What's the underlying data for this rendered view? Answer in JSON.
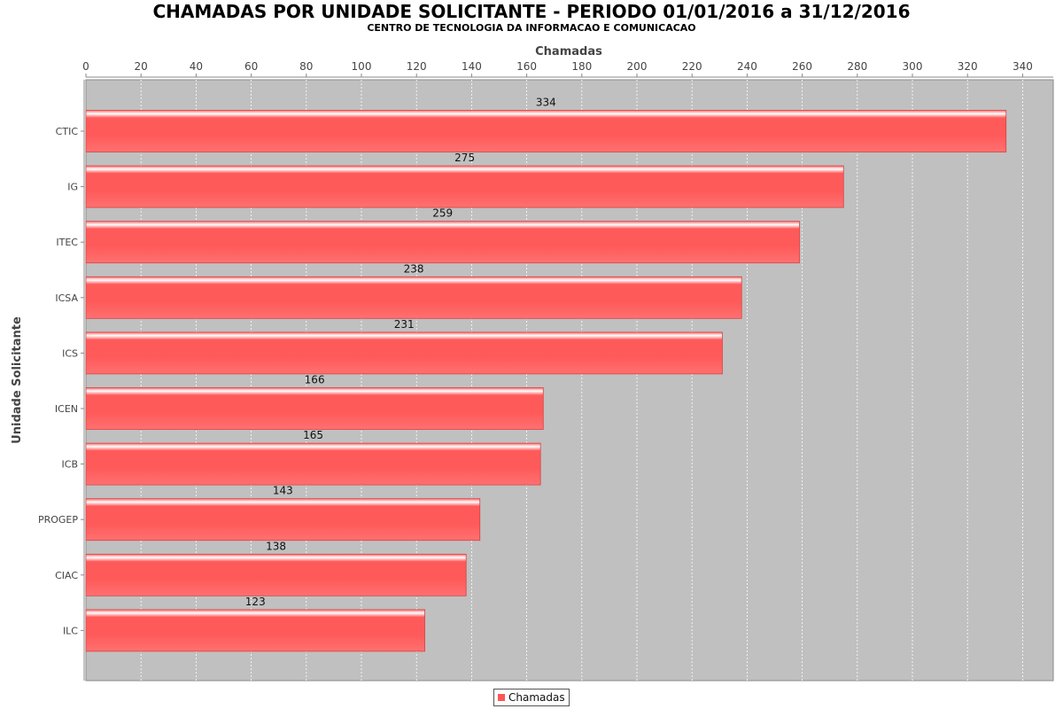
{
  "chart_data": {
    "type": "bar",
    "orientation": "horizontal",
    "title": "CHAMADAS POR UNIDADE SOLICITANTE - PERIODO 01/01/2016 a 31/12/2016",
    "subtitle": "CENTRO DE TECNOLOGIA DA INFORMACAO E COMUNICACAO",
    "xlabel": "Chamadas",
    "ylabel": "Unidade Solicitante",
    "xlim": [
      0,
      350
    ],
    "x_ticks": [
      0,
      20,
      40,
      60,
      80,
      100,
      120,
      140,
      160,
      180,
      200,
      220,
      240,
      260,
      280,
      300,
      320,
      340
    ],
    "x_axis_position": "top",
    "grid": true,
    "legend_position": "bottom-center",
    "categories": [
      "CTIC",
      "IG",
      "ITEC",
      "ICSA",
      "ICS",
      "ICEN",
      "ICB",
      "PROGEP",
      "CIAC",
      "ILC"
    ],
    "series": [
      {
        "name": "Chamadas",
        "values": [
          334,
          275,
          259,
          238,
          231,
          166,
          165,
          143,
          138,
          123
        ],
        "color": "#ff5555"
      }
    ],
    "value_labels": [
      "334",
      "275",
      "259",
      "238",
      "231",
      "166",
      "165",
      "143",
      "138",
      "123"
    ],
    "plot_background": "#c0c0c0"
  }
}
